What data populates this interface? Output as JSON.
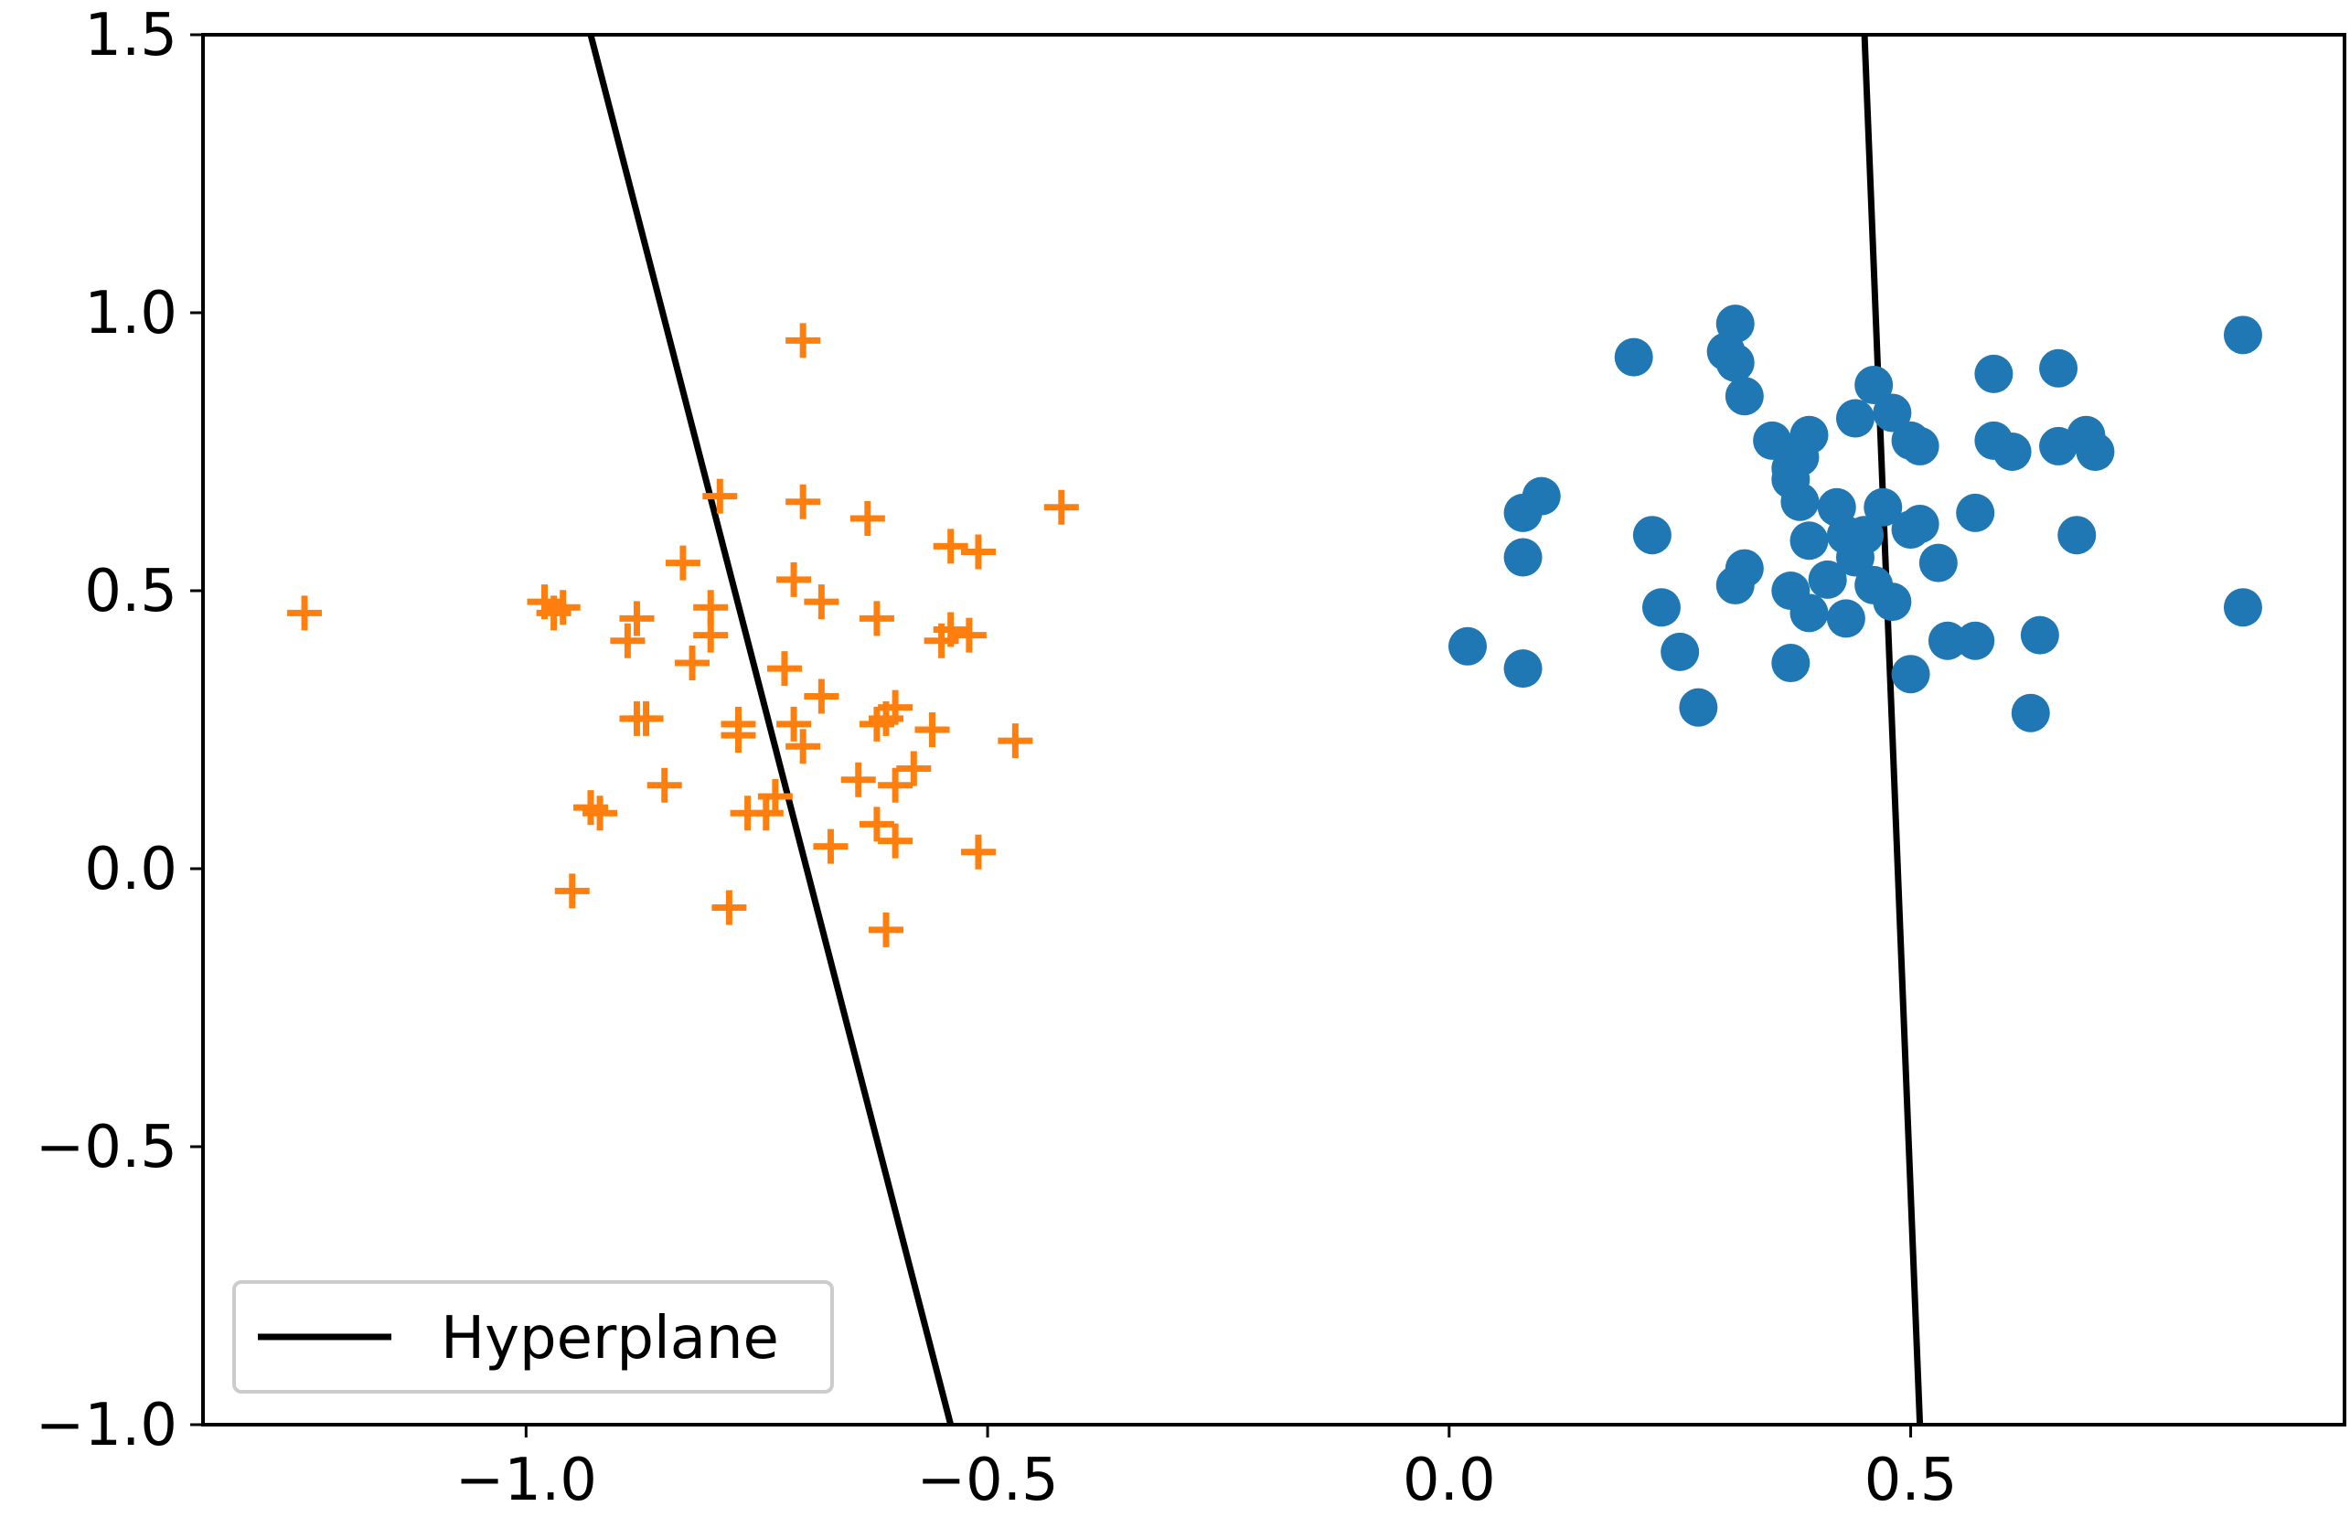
{
  "chart_data": {
    "type": "scatter",
    "title": "",
    "xlabel": "",
    "ylabel": "",
    "xlim": [
      -1.35,
      0.97
    ],
    "ylim": [
      -1.0,
      1.5
    ],
    "x_ticks": [
      -1.0,
      -0.5,
      0.0,
      0.5
    ],
    "x_tick_labels": [
      "−1.0",
      "−0.5",
      "0.0",
      "0.5"
    ],
    "y_ticks": [
      -1.0,
      -0.5,
      0.0,
      0.5,
      1.0,
      1.5
    ],
    "y_tick_labels": [
      "−1.0",
      "−0.5",
      "0.0",
      "0.5",
      "1.0",
      "1.5"
    ],
    "grid": false,
    "legend": {
      "position": "lower-left",
      "entries": [
        "Hyperplane"
      ]
    },
    "series": [
      {
        "marker": "plus",
        "color": "#ff7f0e",
        "points": [
          [
            -1.24,
            0.46
          ],
          [
            -0.98,
            0.48
          ],
          [
            -0.97,
            0.46
          ],
          [
            -0.96,
            0.47
          ],
          [
            -0.93,
            0.11
          ],
          [
            -0.92,
            0.1
          ],
          [
            -0.95,
            -0.04
          ],
          [
            -0.88,
            0.45
          ],
          [
            -0.89,
            0.41
          ],
          [
            -0.88,
            0.27
          ],
          [
            -0.87,
            0.27
          ],
          [
            -0.85,
            0.15
          ],
          [
            -0.83,
            0.55
          ],
          [
            -0.82,
            0.37
          ],
          [
            -0.8,
            0.47
          ],
          [
            -0.8,
            0.42
          ],
          [
            -0.79,
            0.67
          ],
          [
            -0.77,
            0.26
          ],
          [
            -0.77,
            0.24
          ],
          [
            -0.76,
            0.1
          ],
          [
            -0.78,
            -0.07
          ],
          [
            -0.74,
            0.1
          ],
          [
            -0.73,
            0.13
          ],
          [
            -0.72,
            0.36
          ],
          [
            -0.71,
            0.52
          ],
          [
            -0.71,
            0.26
          ],
          [
            -0.7,
            0.22
          ],
          [
            -0.7,
            0.66
          ],
          [
            -0.7,
            0.95
          ],
          [
            -0.68,
            0.48
          ],
          [
            -0.68,
            0.31
          ],
          [
            -0.67,
            0.04
          ],
          [
            -0.64,
            0.16
          ],
          [
            -0.63,
            0.63
          ],
          [
            -0.62,
            0.45
          ],
          [
            -0.62,
            0.26
          ],
          [
            -0.62,
            0.08
          ],
          [
            -0.61,
            0.27
          ],
          [
            -0.6,
            0.29
          ],
          [
            -0.6,
            0.15
          ],
          [
            -0.6,
            0.05
          ],
          [
            -0.58,
            0.18
          ],
          [
            -0.56,
            0.25
          ],
          [
            -0.55,
            0.41
          ],
          [
            -0.54,
            0.43
          ],
          [
            -0.54,
            0.58
          ],
          [
            -0.52,
            0.42
          ],
          [
            -0.51,
            0.57
          ],
          [
            -0.51,
            0.03
          ],
          [
            -0.47,
            0.23
          ],
          [
            -0.42,
            0.65
          ],
          [
            -0.61,
            -0.11
          ]
        ]
      },
      {
        "marker": "circle",
        "color": "#1f77b4",
        "points": [
          [
            0.02,
            0.4
          ],
          [
            0.08,
            0.64
          ],
          [
            0.1,
            0.67
          ],
          [
            0.08,
            0.56
          ],
          [
            0.08,
            0.36
          ],
          [
            0.2,
            0.92
          ],
          [
            0.22,
            0.6
          ],
          [
            0.23,
            0.47
          ],
          [
            0.25,
            0.39
          ],
          [
            0.27,
            0.29
          ],
          [
            0.3,
            0.93
          ],
          [
            0.31,
            0.98
          ],
          [
            0.31,
            0.91
          ],
          [
            0.32,
            0.85
          ],
          [
            0.31,
            0.51
          ],
          [
            0.32,
            0.54
          ],
          [
            0.35,
            0.77
          ],
          [
            0.37,
            0.72
          ],
          [
            0.37,
            0.7
          ],
          [
            0.38,
            0.74
          ],
          [
            0.39,
            0.78
          ],
          [
            0.38,
            0.66
          ],
          [
            0.39,
            0.59
          ],
          [
            0.37,
            0.5
          ],
          [
            0.39,
            0.46
          ],
          [
            0.37,
            0.37
          ],
          [
            0.41,
            0.52
          ],
          [
            0.42,
            0.65
          ],
          [
            0.43,
            0.6
          ],
          [
            0.44,
            0.56
          ],
          [
            0.44,
            0.81
          ],
          [
            0.46,
            0.87
          ],
          [
            0.48,
            0.82
          ],
          [
            0.45,
            0.6
          ],
          [
            0.46,
            0.51
          ],
          [
            0.47,
            0.65
          ],
          [
            0.48,
            0.48
          ],
          [
            0.43,
            0.45
          ],
          [
            0.5,
            0.77
          ],
          [
            0.51,
            0.76
          ],
          [
            0.5,
            0.61
          ],
          [
            0.51,
            0.62
          ],
          [
            0.53,
            0.55
          ],
          [
            0.5,
            0.35
          ],
          [
            0.54,
            0.41
          ],
          [
            0.57,
            0.41
          ],
          [
            0.57,
            0.64
          ],
          [
            0.59,
            0.77
          ],
          [
            0.59,
            0.89
          ],
          [
            0.61,
            0.75
          ],
          [
            0.64,
            0.42
          ],
          [
            0.63,
            0.28
          ],
          [
            0.66,
            0.76
          ],
          [
            0.66,
            0.9
          ],
          [
            0.68,
            0.6
          ],
          [
            0.69,
            0.78
          ],
          [
            0.7,
            0.75
          ],
          [
            0.86,
            0.96
          ],
          [
            0.86,
            0.47
          ]
        ]
      },
      {
        "name": "Hyperplane",
        "marker": "line",
        "color": "#000000",
        "segments": [
          [
            [
              -0.93,
              1.5
            ],
            [
              -0.54,
              -1.0
            ]
          ],
          [
            [
              0.45,
              1.5
            ],
            [
              0.51,
              -1.0
            ]
          ]
        ]
      }
    ]
  }
}
